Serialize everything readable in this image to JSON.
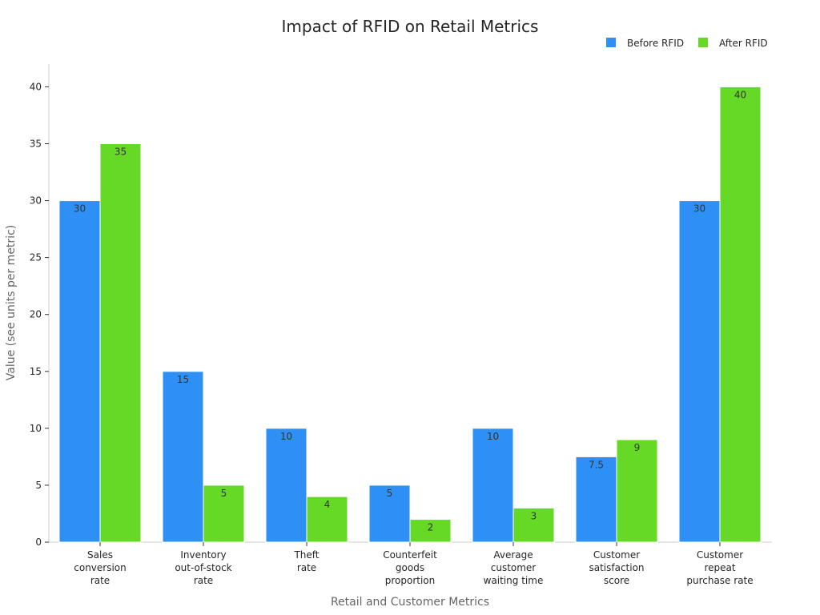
{
  "chart_data": {
    "type": "bar",
    "title": "Impact of RFID on Retail Metrics",
    "xlabel": "Retail and Customer Metrics",
    "ylabel": "Value (see units per metric)",
    "ylim": [
      0,
      42
    ],
    "yticks": [
      0,
      5,
      10,
      15,
      20,
      25,
      30,
      35,
      40
    ],
    "grid": false,
    "legend_position": "top-right",
    "categories": [
      [
        "Sales",
        "conversion",
        "rate"
      ],
      [
        "Inventory",
        "out-of-stock",
        "rate"
      ],
      [
        "Theft",
        "rate"
      ],
      [
        "Counterfeit",
        "goods",
        "proportion"
      ],
      [
        "Average",
        "customer",
        "waiting time"
      ],
      [
        "Customer",
        "satisfaction",
        "score"
      ],
      [
        "Customer",
        "repeat",
        "purchase rate"
      ]
    ],
    "series": [
      {
        "name": "Before RFID",
        "color": "#2e90f5",
        "values": [
          30,
          15,
          10,
          5,
          10,
          7.5,
          30
        ]
      },
      {
        "name": "After RFID",
        "color": "#66d926",
        "values": [
          35,
          5,
          4,
          2,
          3,
          9,
          40
        ]
      }
    ]
  }
}
